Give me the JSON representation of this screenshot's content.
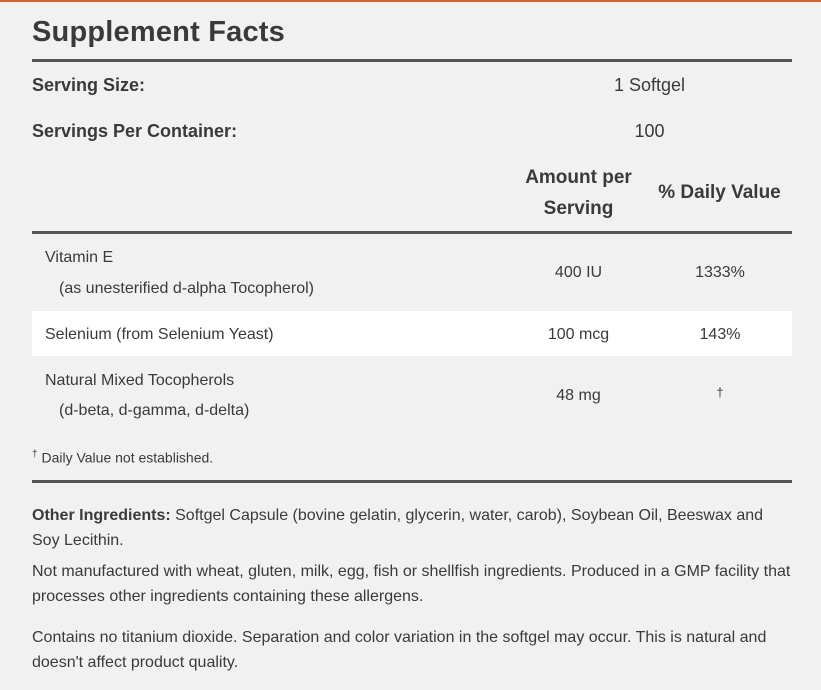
{
  "title": "Supplement Facts",
  "serving_size": {
    "label": "Serving Size:",
    "value": "1 Softgel"
  },
  "servings_per_container": {
    "label": "Servings Per Container:",
    "value": "100"
  },
  "headers": {
    "amount_line1": "Amount per",
    "amount_line2": "Serving",
    "daily_value": "% Daily Value"
  },
  "rows": [
    {
      "name": "Vitamin E",
      "sub": "(as unesterified d-alpha Tocopherol)",
      "amount": "400 IU",
      "dv": "1333%"
    },
    {
      "name": "Selenium (from Selenium Yeast)",
      "sub": "",
      "amount": "100 mcg",
      "dv": "143%"
    },
    {
      "name": "Natural Mixed Tocopherols",
      "sub": "(d-beta, d-gamma, d-delta)",
      "amount": "48 mg",
      "dv": "†"
    }
  ],
  "footnote": {
    "mark": "†",
    "text": " Daily Value not established."
  },
  "other_ingredients": {
    "label": "Other Ingredients:",
    "text": " Softgel Capsule (bovine gelatin, glycerin, water, carob), Soybean Oil, Beeswax and Soy Lecithin."
  },
  "allergen_note": "Not manufactured with wheat, gluten, milk, egg, fish or shellfish ingredients. Produced in a GMP facility that processes other ingredients containing these allergens.",
  "titanium_note": "Contains no titanium dioxide. Separation and color variation in the softgel may occur. This is natural and doesn't affect product quality."
}
